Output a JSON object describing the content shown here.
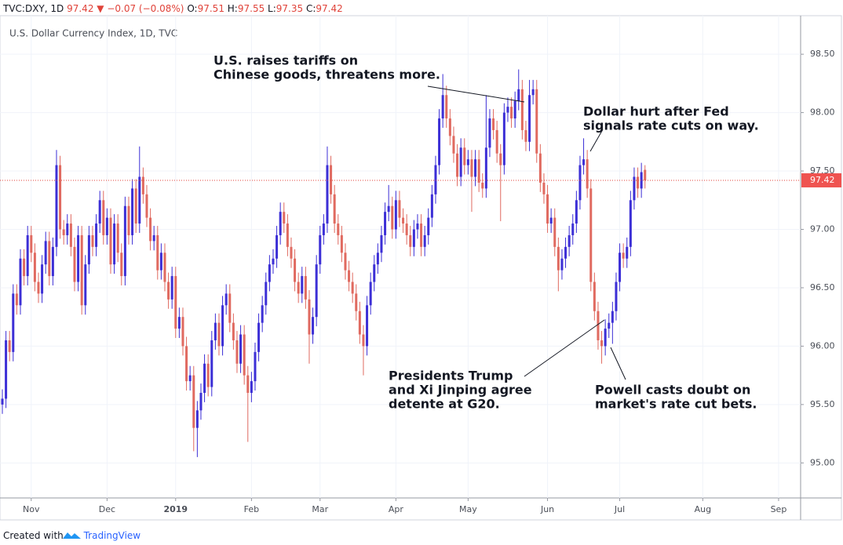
{
  "chart_data": {
    "type": "candlestick",
    "header": {
      "symbol": "TVC:DXY, 1D",
      "change_arrow": "▼",
      "change": "−0.07 (−0.08%)",
      "ohlc_labels": [
        "O:",
        "H:",
        "L:",
        "C:"
      ]
    },
    "title": "U.S. Dollar Currency Index, 1D, TVC",
    "up_color": "#3c2fd6",
    "down_color": "#e06a60",
    "open": [
      95.5,
      95.55,
      96.05,
      95.95,
      96.45,
      96.35,
      96.75,
      96.6,
      96.95,
      96.8,
      96.55,
      96.45,
      96.7,
      96.9,
      96.6,
      96.85,
      97.55,
      97.0,
      96.95,
      97.05,
      96.85,
      96.55,
      96.95,
      96.35,
      96.7,
      96.95,
      96.85,
      97.05,
      97.25,
      96.95,
      97.1,
      96.7,
      97.05,
      96.8,
      96.6,
      97.2,
      96.95,
      97.35,
      97.05,
      97.45,
      97.3,
      97.1,
      96.9,
      96.95,
      96.65,
      96.8,
      96.55,
      96.4,
      96.6,
      96.15,
      96.25,
      96.0,
      95.7,
      95.75,
      95.3,
      95.45,
      95.6,
      95.85,
      95.65,
      96.05,
      96.2,
      96.0,
      96.35,
      96.45,
      96.2,
      96.05,
      95.85,
      96.1,
      95.75,
      95.6,
      95.7,
      95.95,
      96.2,
      96.35,
      96.55,
      96.7,
      96.75,
      96.95,
      97.15,
      97.05,
      96.85,
      96.75,
      96.55,
      96.45,
      96.6,
      96.4,
      96.1,
      96.25,
      96.7,
      96.95,
      97.05,
      97.55,
      97.3,
      97.05,
      96.95,
      96.8,
      96.65,
      96.55,
      96.45,
      96.3,
      96.1,
      96.0,
      96.35,
      96.55,
      96.7,
      96.8,
      96.95,
      97.15,
      97.2,
      97.0,
      97.25,
      97.1,
      97.05,
      96.95,
      96.85,
      97.0,
      97.05,
      96.85,
      96.95,
      97.1,
      97.3,
      97.55,
      97.95,
      98.15,
      97.95,
      97.8,
      97.65,
      97.45,
      97.7,
      97.55,
      97.6,
      97.45,
      97.6,
      97.4,
      97.35,
      97.7,
      97.95,
      97.85,
      97.65,
      97.55,
      98.0,
      98.05,
      97.95,
      98.1,
      98.2,
      97.85,
      97.75,
      98.15,
      98.2,
      97.65,
      97.4,
      97.3,
      97.05,
      97.1,
      96.85,
      96.65,
      96.75,
      96.85,
      96.95,
      97.05,
      97.25,
      97.55,
      97.6,
      97.35,
      96.55,
      96.3,
      96.05,
      96.0,
      96.15,
      96.2,
      96.3,
      96.55,
      96.8,
      96.75,
      96.85,
      97.25,
      97.45,
      97.35,
      97.51
    ],
    "high": [
      95.63,
      96.13,
      96.13,
      96.53,
      96.53,
      96.83,
      96.83,
      97.03,
      97.03,
      96.88,
      96.63,
      96.78,
      96.98,
      96.98,
      96.93,
      97.68,
      97.63,
      97.08,
      97.13,
      97.13,
      96.93,
      97.03,
      97.03,
      96.78,
      97.03,
      97.03,
      97.13,
      97.33,
      97.33,
      97.18,
      97.18,
      97.13,
      97.13,
      96.88,
      97.28,
      97.28,
      97.43,
      97.43,
      97.71,
      97.53,
      97.38,
      97.18,
      97.03,
      97.03,
      96.88,
      96.88,
      96.63,
      96.68,
      96.68,
      96.33,
      96.33,
      96.08,
      95.83,
      95.83,
      95.53,
      95.68,
      95.93,
      95.93,
      96.13,
      96.28,
      96.28,
      96.43,
      96.53,
      96.53,
      96.28,
      96.13,
      96.18,
      96.18,
      95.83,
      95.78,
      96.03,
      96.28,
      96.43,
      96.63,
      96.78,
      96.83,
      97.03,
      97.23,
      97.23,
      97.13,
      96.93,
      96.83,
      96.63,
      96.68,
      96.68,
      96.48,
      96.33,
      96.78,
      97.03,
      97.13,
      97.71,
      97.63,
      97.38,
      97.13,
      97.03,
      96.88,
      96.73,
      96.63,
      96.53,
      96.38,
      96.18,
      96.43,
      96.63,
      96.78,
      96.88,
      97.03,
      97.23,
      97.38,
      97.28,
      97.33,
      97.33,
      97.18,
      97.13,
      97.03,
      97.08,
      97.13,
      97.13,
      97.03,
      97.18,
      97.38,
      97.63,
      98.03,
      98.33,
      98.23,
      98.03,
      97.88,
      97.73,
      97.78,
      97.78,
      97.68,
      97.68,
      97.68,
      97.68,
      97.48,
      98.15,
      98.03,
      98.03,
      97.93,
      97.73,
      98.08,
      98.13,
      98.13,
      98.18,
      98.37,
      98.28,
      97.93,
      98.28,
      98.28,
      98.28,
      97.73,
      97.48,
      97.38,
      97.18,
      97.18,
      96.93,
      96.83,
      96.93,
      97.03,
      97.13,
      97.33,
      97.63,
      97.78,
      97.68,
      97.43,
      96.63,
      96.38,
      96.13,
      96.23,
      96.28,
      96.38,
      96.63,
      96.88,
      96.88,
      96.93,
      97.33,
      97.53,
      97.53,
      97.57,
      97.55
    ],
    "low": [
      95.42,
      95.47,
      95.87,
      95.87,
      96.27,
      96.27,
      96.52,
      96.52,
      96.72,
      96.47,
      96.37,
      96.37,
      96.62,
      96.52,
      96.52,
      96.77,
      96.92,
      96.87,
      96.87,
      96.77,
      96.47,
      96.47,
      96.27,
      96.27,
      96.62,
      96.77,
      96.77,
      96.97,
      96.87,
      96.87,
      96.62,
      96.62,
      96.72,
      96.52,
      96.52,
      96.87,
      96.87,
      96.97,
      96.97,
      97.22,
      97.02,
      96.82,
      96.82,
      96.57,
      96.57,
      96.47,
      96.32,
      96.32,
      96.07,
      96.07,
      95.92,
      95.62,
      95.62,
      95.1,
      95.05,
      95.37,
      95.52,
      95.57,
      95.57,
      95.97,
      95.92,
      95.92,
      96.27,
      96.12,
      95.97,
      95.77,
      95.77,
      95.67,
      95.18,
      95.52,
      95.62,
      95.87,
      96.12,
      96.27,
      96.47,
      96.62,
      96.67,
      96.87,
      96.97,
      96.77,
      96.67,
      96.47,
      96.37,
      96.37,
      96.32,
      95.85,
      96.02,
      96.17,
      96.62,
      96.87,
      96.97,
      97.22,
      96.97,
      96.87,
      96.72,
      96.57,
      96.47,
      96.37,
      96.22,
      96.02,
      95.75,
      95.92,
      96.27,
      96.47,
      96.62,
      96.72,
      96.87,
      97.07,
      96.92,
      96.92,
      97.02,
      96.97,
      96.87,
      96.77,
      96.77,
      96.92,
      96.77,
      96.77,
      96.87,
      97.02,
      97.22,
      97.47,
      97.87,
      97.87,
      97.72,
      97.57,
      97.37,
      97.37,
      97.47,
      97.47,
      97.15,
      97.37,
      97.32,
      97.27,
      97.27,
      97.62,
      97.77,
      97.57,
      97.07,
      97.47,
      97.92,
      97.87,
      97.87,
      98.02,
      97.77,
      97.67,
      97.67,
      98.07,
      97.57,
      97.32,
      97.22,
      96.97,
      96.97,
      96.77,
      96.47,
      96.57,
      96.67,
      96.77,
      96.87,
      96.97,
      97.17,
      97.47,
      97.27,
      96.47,
      96.22,
      95.97,
      95.85,
      95.92,
      96.07,
      96.02,
      96.22,
      96.47,
      96.67,
      96.67,
      96.77,
      97.17,
      97.27,
      97.27,
      97.35
    ],
    "close": [
      95.55,
      96.05,
      95.95,
      96.45,
      96.35,
      96.75,
      96.6,
      96.95,
      96.8,
      96.55,
      96.45,
      96.7,
      96.9,
      96.6,
      96.85,
      97.55,
      97.0,
      96.95,
      97.05,
      96.85,
      96.55,
      96.95,
      96.35,
      96.7,
      96.95,
      96.85,
      97.05,
      97.25,
      96.95,
      97.1,
      96.7,
      97.05,
      96.8,
      96.6,
      97.2,
      96.95,
      97.35,
      97.05,
      97.45,
      97.3,
      97.1,
      96.9,
      96.95,
      96.65,
      96.8,
      96.55,
      96.4,
      96.6,
      96.15,
      96.25,
      96.0,
      95.7,
      95.75,
      95.3,
      95.45,
      95.6,
      95.85,
      95.65,
      96.05,
      96.2,
      96.0,
      96.35,
      96.45,
      96.2,
      96.05,
      95.85,
      96.1,
      95.75,
      95.6,
      95.7,
      95.95,
      96.2,
      96.35,
      96.55,
      96.7,
      96.75,
      96.95,
      97.15,
      97.05,
      96.85,
      96.75,
      96.55,
      96.45,
      96.6,
      96.4,
      96.1,
      96.25,
      96.7,
      96.95,
      97.05,
      97.55,
      97.3,
      97.05,
      96.95,
      96.8,
      96.65,
      96.55,
      96.45,
      96.3,
      96.1,
      96.0,
      96.35,
      96.55,
      96.7,
      96.8,
      96.95,
      97.15,
      97.2,
      97.0,
      97.25,
      97.1,
      97.05,
      96.95,
      96.85,
      97.0,
      97.05,
      96.85,
      96.95,
      97.1,
      97.3,
      97.55,
      97.95,
      98.15,
      97.95,
      97.8,
      97.65,
      97.45,
      97.7,
      97.55,
      97.6,
      97.45,
      97.6,
      97.4,
      97.35,
      97.7,
      97.95,
      97.85,
      97.65,
      97.55,
      98.0,
      98.05,
      97.95,
      98.1,
      98.2,
      97.85,
      97.75,
      98.15,
      98.2,
      97.65,
      97.4,
      97.3,
      97.05,
      97.1,
      96.85,
      96.65,
      96.75,
      96.85,
      96.95,
      97.05,
      97.25,
      97.55,
      97.6,
      97.35,
      96.55,
      96.3,
      96.05,
      96.0,
      96.15,
      96.2,
      96.3,
      96.55,
      96.8,
      96.75,
      96.85,
      97.25,
      97.45,
      97.35,
      97.49,
      97.42
    ],
    "xlim": [
      -0.65,
      221.1
    ],
    "xticks": [
      {
        "value": 8,
        "label": "Nov"
      },
      {
        "value": 29,
        "label": "Dec"
      },
      {
        "value": 48,
        "label": "2019"
      },
      {
        "value": 69,
        "label": "Feb"
      },
      {
        "value": 88,
        "label": "Mar"
      },
      {
        "value": 109,
        "label": "Apr"
      },
      {
        "value": 129,
        "label": "May"
      },
      {
        "value": 151,
        "label": "Jun"
      },
      {
        "value": 171,
        "label": "Jul"
      },
      {
        "value": 194,
        "label": "Aug"
      },
      {
        "value": 215,
        "label": "Sep"
      }
    ],
    "ylim": [
      94.7,
      98.83
    ],
    "yticks": [
      {
        "value": 95,
        "label": "95.00"
      },
      {
        "value": 95.5,
        "label": "95.50"
      },
      {
        "value": 96,
        "label": "96.00"
      },
      {
        "value": 96.5,
        "label": "96.50"
      },
      {
        "value": 97,
        "label": "97.00"
      },
      {
        "value": 97.5,
        "label": "97.50"
      },
      {
        "value": 98,
        "label": "98.00"
      },
      {
        "value": 98.5,
        "label": "98.50"
      }
    ],
    "grid": true,
    "annotations": [
      {
        "lines": [
          "U.S. raises tariffs on",
          "Chinese goods, threatens more."
        ]
      },
      {
        "lines": [
          "Dollar hurt after Fed",
          "signals rate cuts on way."
        ]
      },
      {
        "lines": [
          "Presidents Trump",
          "and Xi Jinping agree",
          "detente at G20."
        ]
      },
      {
        "lines": [
          "Powell casts doubt on",
          "market's rate cut bets."
        ]
      }
    ],
    "footer": {
      "prefix": "Created with",
      "brand": "TradingView"
    }
  }
}
